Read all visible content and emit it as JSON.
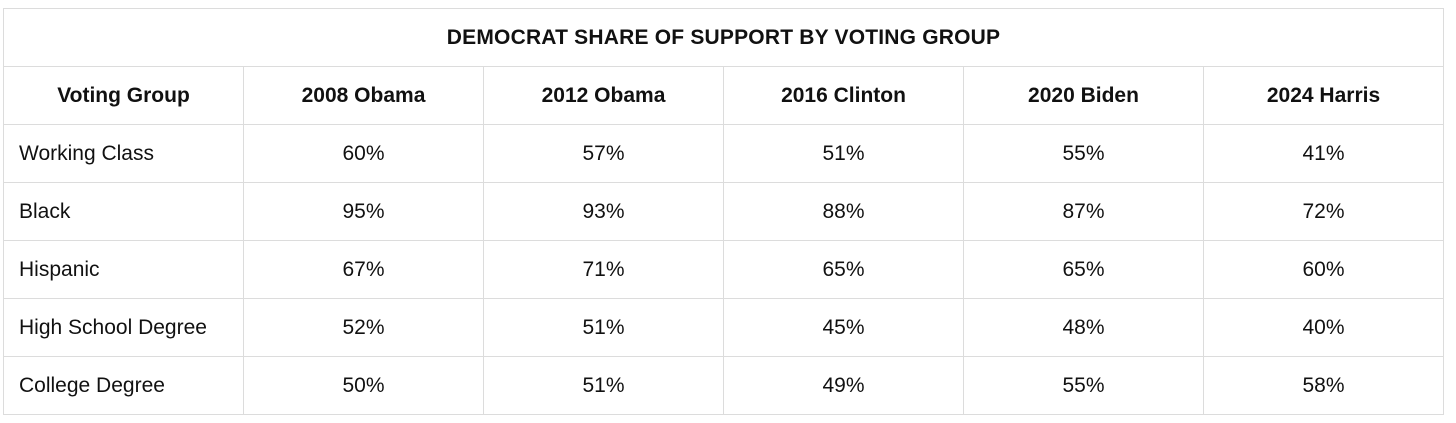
{
  "table": {
    "title": "DEMOCRAT SHARE OF SUPPORT BY VOTING GROUP",
    "headers": [
      "Voting Group",
      "2008 Obama",
      "2012 Obama",
      "2016 Clinton",
      "2020 Biden",
      "2024 Harris"
    ],
    "rows": [
      {
        "group": "Working Class",
        "values": [
          "60%",
          "57%",
          "51%",
          "55%",
          "41%"
        ]
      },
      {
        "group": "Black",
        "values": [
          "95%",
          "93%",
          "88%",
          "87%",
          "72%"
        ]
      },
      {
        "group": "Hispanic",
        "values": [
          "67%",
          "71%",
          "65%",
          "65%",
          "60%"
        ]
      },
      {
        "group": "High School Degree",
        "values": [
          "52%",
          "51%",
          "45%",
          "48%",
          "40%"
        ]
      },
      {
        "group": "College Degree",
        "values": [
          "50%",
          "51%",
          "49%",
          "55%",
          "58%"
        ]
      }
    ]
  }
}
